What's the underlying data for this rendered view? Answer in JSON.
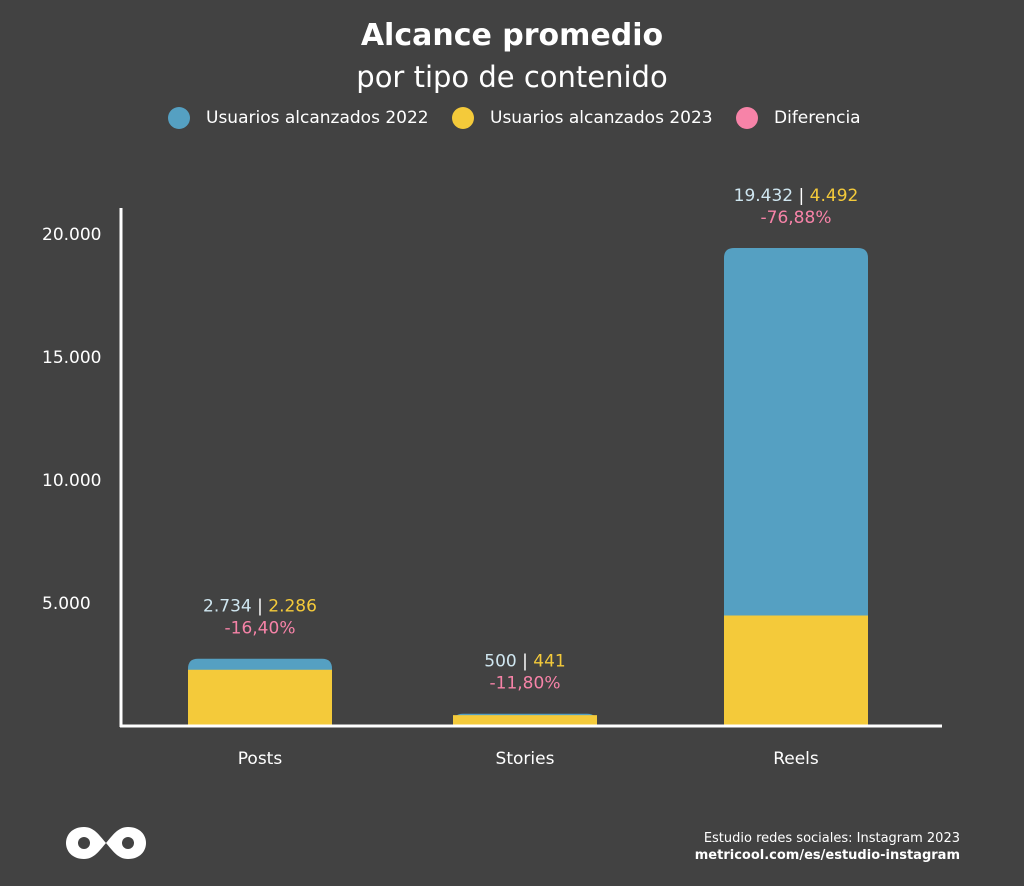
{
  "colors": {
    "background": "#424242",
    "series_2022": "#55a0c2",
    "series_2023": "#f4ca3a",
    "difference": "#f783a8",
    "label_2022": "#cfe6f0",
    "text": "#ffffff"
  },
  "legend": [
    {
      "label": "Usuarios alcanzados 2022",
      "color_key": "series_2022"
    },
    {
      "label": "Usuarios alcanzados 2023",
      "color_key": "series_2023"
    },
    {
      "label": "Diferencia",
      "color_key": "difference"
    }
  ],
  "chart_data": {
    "type": "bar",
    "title": "Alcance promedio",
    "subtitle": "por tipo de contenido",
    "categories": [
      "Posts",
      "Stories",
      "Reels"
    ],
    "series": [
      {
        "name": "Usuarios alcanzados 2022",
        "values": [
          2734,
          500,
          19432
        ]
      },
      {
        "name": "Usuarios alcanzados 2023",
        "values": [
          2286,
          441,
          4492
        ]
      }
    ],
    "bar_labels": [
      {
        "v2022": "2.734",
        "sep": " | ",
        "v2023": "2.286",
        "diff": "-16,40%"
      },
      {
        "v2022": "500",
        "sep": " | ",
        "v2023": "441",
        "diff": "-11,80%"
      },
      {
        "v2022": "19.432",
        "sep": " | ",
        "v2023": "4.492",
        "diff": "-76,88%"
      }
    ],
    "y_ticks": [
      {
        "value": 5000,
        "label": "5.000"
      },
      {
        "value": 10000,
        "label": "10.000"
      },
      {
        "value": 15000,
        "label": "15.000"
      },
      {
        "value": 20000,
        "label": "20.000"
      }
    ],
    "ylim": [
      0,
      20000
    ],
    "grid": false,
    "legend_position": "top",
    "layering": "overlapping"
  },
  "footer": {
    "line1": "Estudio redes sociales: Instagram 2023",
    "line2": "metricool.com/es/estudio-instagram"
  },
  "logo": {
    "icon": "metricool-logo-icon"
  }
}
